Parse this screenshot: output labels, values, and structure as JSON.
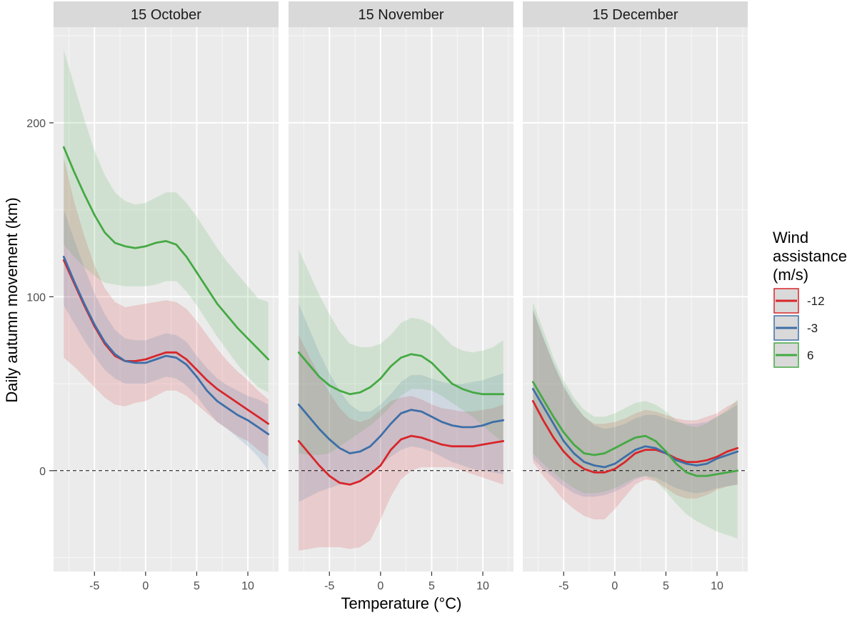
{
  "chart_data": {
    "type": "line",
    "xlabel": "Temperature (°C)",
    "ylabel": "Daily autumn movement (km)",
    "xlim": [
      -9,
      13
    ],
    "ylim": [
      -58,
      255
    ],
    "x_ticks": [
      -5,
      0,
      5,
      10
    ],
    "x_tick_labels": [
      "-5",
      "0",
      "5",
      "10"
    ],
    "y_ticks": [
      0,
      100,
      200
    ],
    "y_tick_labels": [
      "0",
      "100",
      "200"
    ],
    "grid": true,
    "reference_line": {
      "y": 0,
      "style": "dashed"
    },
    "legend": {
      "title": "Wind\nassistance\n(m/s)",
      "title_lines": [
        "Wind",
        "assistance",
        "(m/s)"
      ],
      "placement": "right",
      "entries": [
        {
          "label": "-12",
          "color": "#d7262b"
        },
        {
          "label": "-3",
          "color": "#3d6fa8"
        },
        {
          "label": "6",
          "color": "#45a944"
        }
      ]
    },
    "x": [
      -8,
      -7,
      -6,
      -5,
      -4,
      -3,
      -2,
      -1,
      0,
      1,
      2,
      3,
      4,
      5,
      6,
      7,
      8,
      9,
      10,
      11,
      12
    ],
    "panels": [
      {
        "title": "15 October",
        "series": [
          {
            "name": "-12",
            "color": "#d7262b",
            "values": [
              121,
              108,
              95,
              83,
              73,
              66,
              63,
              63,
              64,
              66,
              68,
              68,
              64,
              58,
              52,
              47,
              43,
              39,
              35,
              31,
              27
            ],
            "lower": [
              65,
              60,
              54,
              48,
              42,
              38,
              37,
              39,
              40,
              43,
              46,
              46,
              43,
              38,
              33,
              28,
              24,
              20,
              17,
              12,
              8
            ],
            "upper": [
              180,
              155,
              135,
              118,
              105,
              97,
              94,
              95,
              96,
              97,
              98,
              97,
              93,
              86,
              78,
              70,
              63,
              57,
              52,
              46,
              41
            ]
          },
          {
            "name": "-3",
            "color": "#3d6fa8",
            "values": [
              123,
              109,
              96,
              84,
              74,
              67,
              63,
              62,
              62,
              64,
              66,
              65,
              61,
              54,
              46,
              40,
              36,
              32,
              29,
              25,
              21
            ],
            "lower": [
              95,
              85,
              75,
              66,
              58,
              53,
              50,
              50,
              50,
              52,
              54,
              53,
              49,
              43,
              35,
              28,
              24,
              19,
              14,
              8,
              0
            ],
            "upper": [
              150,
              133,
              117,
              102,
              90,
              81,
              76,
              75,
              75,
              77,
              79,
              78,
              74,
              66,
              59,
              53,
              49,
              46,
              43,
              41,
              38
            ]
          },
          {
            "name": "6",
            "color": "#45a944",
            "values": [
              186,
              172,
              159,
              147,
              137,
              131,
              129,
              128,
              129,
              131,
              132,
              130,
              123,
              114,
              105,
              96,
              89,
              82,
              76,
              70,
              64
            ],
            "lower": [
              130,
              123,
              117,
              112,
              108,
              107,
              106,
              106,
              106,
              107,
              109,
              109,
              103,
              95,
              86,
              77,
              69,
              61,
              54,
              48,
              45
            ],
            "upper": [
              242,
              222,
              202,
              184,
              170,
              160,
              155,
              153,
              154,
              157,
              160,
              160,
              154,
              146,
              137,
              128,
              120,
              113,
              106,
              99,
              97
            ]
          }
        ]
      },
      {
        "title": "15 November",
        "series": [
          {
            "name": "-12",
            "color": "#d7262b",
            "values": [
              17,
              10,
              3,
              -3,
              -7,
              -8,
              -6,
              -2,
              3,
              12,
              18,
              20,
              19,
              17,
              15,
              14,
              14,
              14,
              15,
              16,
              17
            ],
            "lower": [
              -46,
              -45,
              -44,
              -44,
              -44,
              -45,
              -44,
              -40,
              -28,
              -15,
              -5,
              0,
              2,
              2,
              2,
              2,
              0,
              -2,
              -4,
              -6,
              -8
            ],
            "upper": [
              78,
              66,
              55,
              45,
              36,
              30,
              28,
              30,
              35,
              40,
              42,
              43,
              41,
              38,
              36,
              35,
              34,
              34,
              35,
              36,
              38
            ]
          },
          {
            "name": "-3",
            "color": "#3d6fa8",
            "values": [
              38,
              31,
              24,
              18,
              13,
              10,
              11,
              14,
              20,
              27,
              33,
              35,
              34,
              31,
              28,
              26,
              25,
              25,
              26,
              28,
              29
            ],
            "lower": [
              -18,
              -15,
              -12,
              -10,
              -8,
              -8,
              -6,
              -2,
              3,
              8,
              12,
              14,
              13,
              11,
              8,
              5,
              3,
              1,
              0,
              -1,
              -2
            ],
            "upper": [
              96,
              82,
              68,
              56,
              46,
              38,
              34,
              34,
              38,
              44,
              51,
              55,
              55,
              53,
              51,
              50,
              50,
              51,
              52,
              54,
              56
            ]
          },
          {
            "name": "6",
            "color": "#45a944",
            "values": [
              68,
              61,
              54,
              49,
              46,
              44,
              45,
              48,
              53,
              60,
              65,
              67,
              66,
              62,
              56,
              50,
              47,
              45,
              44,
              44,
              44
            ],
            "lower": [
              10,
              9,
              9,
              10,
              14,
              18,
              22,
              26,
              31,
              37,
              43,
              47,
              47,
              46,
              43,
              39,
              35,
              31,
              26,
              21,
              16
            ],
            "upper": [
              127,
              114,
              101,
              90,
              80,
              73,
              71,
              71,
              73,
              78,
              85,
              88,
              87,
              84,
              78,
              72,
              69,
              68,
              69,
              71,
              75
            ]
          }
        ]
      },
      {
        "title": "15 December",
        "series": [
          {
            "name": "-12",
            "color": "#d7262b",
            "values": [
              40,
              29,
              19,
              11,
              5,
              1,
              -1,
              -1,
              1,
              5,
              10,
              12,
              12,
              10,
              7,
              5,
              5,
              6,
              8,
              11,
              13
            ],
            "lower": [
              5,
              -3,
              -10,
              -17,
              -22,
              -26,
              -28,
              -28,
              -22,
              -15,
              -8,
              -5,
              -6,
              -10,
              -14,
              -16,
              -16,
              -14,
              -11,
              -9,
              -8
            ],
            "upper": [
              92,
              76,
              61,
              48,
              38,
              31,
              27,
              27,
              28,
              30,
              33,
              35,
              34,
              32,
              30,
              29,
              29,
              31,
              33,
              37,
              40
            ]
          },
          {
            "name": "-3",
            "color": "#3d6fa8",
            "values": [
              47,
              37,
              27,
              17,
              10,
              5,
              3,
              2,
              4,
              8,
              12,
              14,
              13,
              10,
              6,
              4,
              3,
              4,
              7,
              9,
              11
            ],
            "lower": [
              7,
              1,
              -4,
              -9,
              -13,
              -15,
              -15,
              -14,
              -12,
              -9,
              -5,
              -3,
              -4,
              -7,
              -10,
              -12,
              -13,
              -12,
              -10,
              -9,
              -8
            ],
            "upper": [
              93,
              77,
              62,
              49,
              39,
              31,
              26,
              24,
              25,
              27,
              30,
              32,
              32,
              30,
              28,
              27,
              27,
              28,
              31,
              34,
              38
            ]
          },
          {
            "name": "6",
            "color": "#45a944",
            "values": [
              51,
              41,
              31,
              22,
              15,
              10,
              9,
              10,
              13,
              16,
              19,
              20,
              17,
              11,
              4,
              -1,
              -3,
              -3,
              -2,
              -1,
              0
            ],
            "lower": [
              10,
              4,
              -1,
              -6,
              -10,
              -13,
              -13,
              -12,
              -10,
              -7,
              -4,
              -3,
              -6,
              -12,
              -19,
              -25,
              -29,
              -32,
              -35,
              -37,
              -39
            ],
            "upper": [
              97,
              81,
              65,
              52,
              42,
              35,
              31,
              31,
              33,
              36,
              39,
              40,
              38,
              34,
              29,
              26,
              25,
              27,
              31,
              35,
              41
            ]
          }
        ]
      }
    ]
  }
}
